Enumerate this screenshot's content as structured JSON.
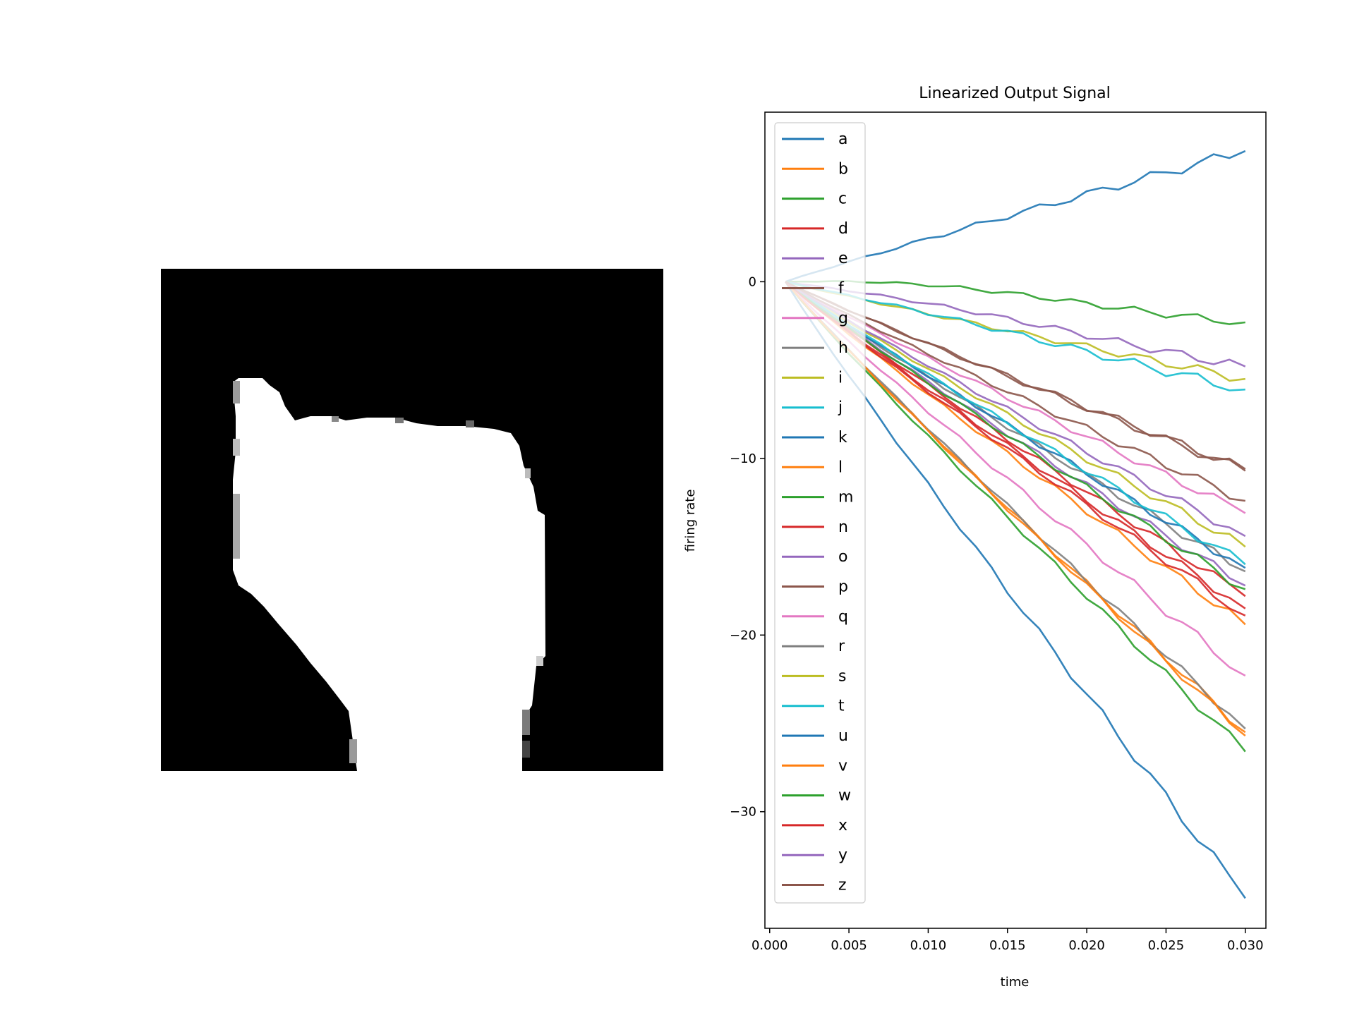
{
  "figure": {
    "image_panel": {
      "kind": "binary silhouette image (grayscale)",
      "background": "#000000",
      "foreground": "#ffffff"
    }
  },
  "chart_data": {
    "type": "line",
    "title": "Linearized Output Signal",
    "xlabel": "time",
    "ylabel": "firing rate",
    "xlim": [
      -0.0003,
      0.0313
    ],
    "ylim": [
      -36.6,
      9.6
    ],
    "xticks": [
      0.0,
      0.005,
      0.01,
      0.015,
      0.02,
      0.025,
      0.03
    ],
    "xtick_labels": [
      "0.000",
      "0.005",
      "0.010",
      "0.015",
      "0.020",
      "0.025",
      "0.030"
    ],
    "yticks": [
      0,
      -10,
      -20,
      -30
    ],
    "ytick_labels": [
      "0",
      "−10",
      "−20",
      "−30"
    ],
    "grid": false,
    "legend_position": "upper left",
    "x": [
      0.001,
      0.002,
      0.003,
      0.004,
      0.005,
      0.006,
      0.007,
      0.008,
      0.009,
      0.01,
      0.011,
      0.012,
      0.013,
      0.014,
      0.015,
      0.016,
      0.017,
      0.018,
      0.019,
      0.02,
      0.021,
      0.022,
      0.023,
      0.024,
      0.025,
      0.026,
      0.027,
      0.028,
      0.029,
      0.03
    ],
    "series": [
      {
        "name": "a",
        "color": "#1f77b4",
        "end": 7.4,
        "wiggle": 0.35
      },
      {
        "name": "b",
        "color": "#ff7f0e",
        "end": -25.5,
        "wiggle": 0.25
      },
      {
        "name": "c",
        "color": "#2ca02c",
        "end": -2.3,
        "wiggle": 0.25,
        "start_bump": 0.5
      },
      {
        "name": "d",
        "color": "#d62728",
        "end": -18.5,
        "wiggle": 0.3
      },
      {
        "name": "e",
        "color": "#9467bd",
        "end": -4.8,
        "wiggle": 0.3,
        "start_bump": 0.3
      },
      {
        "name": "f",
        "color": "#8c564b",
        "end": -10.7,
        "wiggle": 0.3
      },
      {
        "name": "g",
        "color": "#e377c2",
        "end": -13.1,
        "wiggle": 0.3
      },
      {
        "name": "h",
        "color": "#7f7f7f",
        "end": -16.4,
        "wiggle": 0.3
      },
      {
        "name": "i",
        "color": "#bcbd22",
        "end": -5.5,
        "wiggle": 0.3
      },
      {
        "name": "j",
        "color": "#17becf",
        "end": -6.1,
        "wiggle": 0.35,
        "start_bump": 0.2
      },
      {
        "name": "k",
        "color": "#1f77b4",
        "end": -16.2,
        "wiggle": 0.3
      },
      {
        "name": "l",
        "color": "#ff7f0e",
        "end": -19.4,
        "wiggle": 0.3
      },
      {
        "name": "m",
        "color": "#2ca02c",
        "end": -26.6,
        "wiggle": 0.3
      },
      {
        "name": "n",
        "color": "#d62728",
        "end": -17.8,
        "wiggle": 0.3
      },
      {
        "name": "o",
        "color": "#9467bd",
        "end": -17.2,
        "wiggle": 0.3
      },
      {
        "name": "p",
        "color": "#8c564b",
        "end": -12.4,
        "wiggle": 0.3
      },
      {
        "name": "q",
        "color": "#e377c2",
        "end": -22.3,
        "wiggle": 0.35
      },
      {
        "name": "r",
        "color": "#7f7f7f",
        "end": -25.3,
        "wiggle": 0.25
      },
      {
        "name": "s",
        "color": "#bcbd22",
        "end": -15.0,
        "wiggle": 0.3
      },
      {
        "name": "t",
        "color": "#17becf",
        "end": -16.0,
        "wiggle": 0.3
      },
      {
        "name": "u",
        "color": "#1f77b4",
        "end": -34.9,
        "wiggle": 0.4
      },
      {
        "name": "v",
        "color": "#ff7f0e",
        "end": -25.7,
        "wiggle": 0.25
      },
      {
        "name": "w",
        "color": "#2ca02c",
        "end": -17.4,
        "wiggle": 0.3
      },
      {
        "name": "x",
        "color": "#d62728",
        "end": -18.9,
        "wiggle": 0.3
      },
      {
        "name": "y",
        "color": "#9467bd",
        "end": -14.4,
        "wiggle": 0.3
      },
      {
        "name": "z",
        "color": "#8c564b",
        "end": -10.6,
        "wiggle": 0.3
      }
    ]
  }
}
